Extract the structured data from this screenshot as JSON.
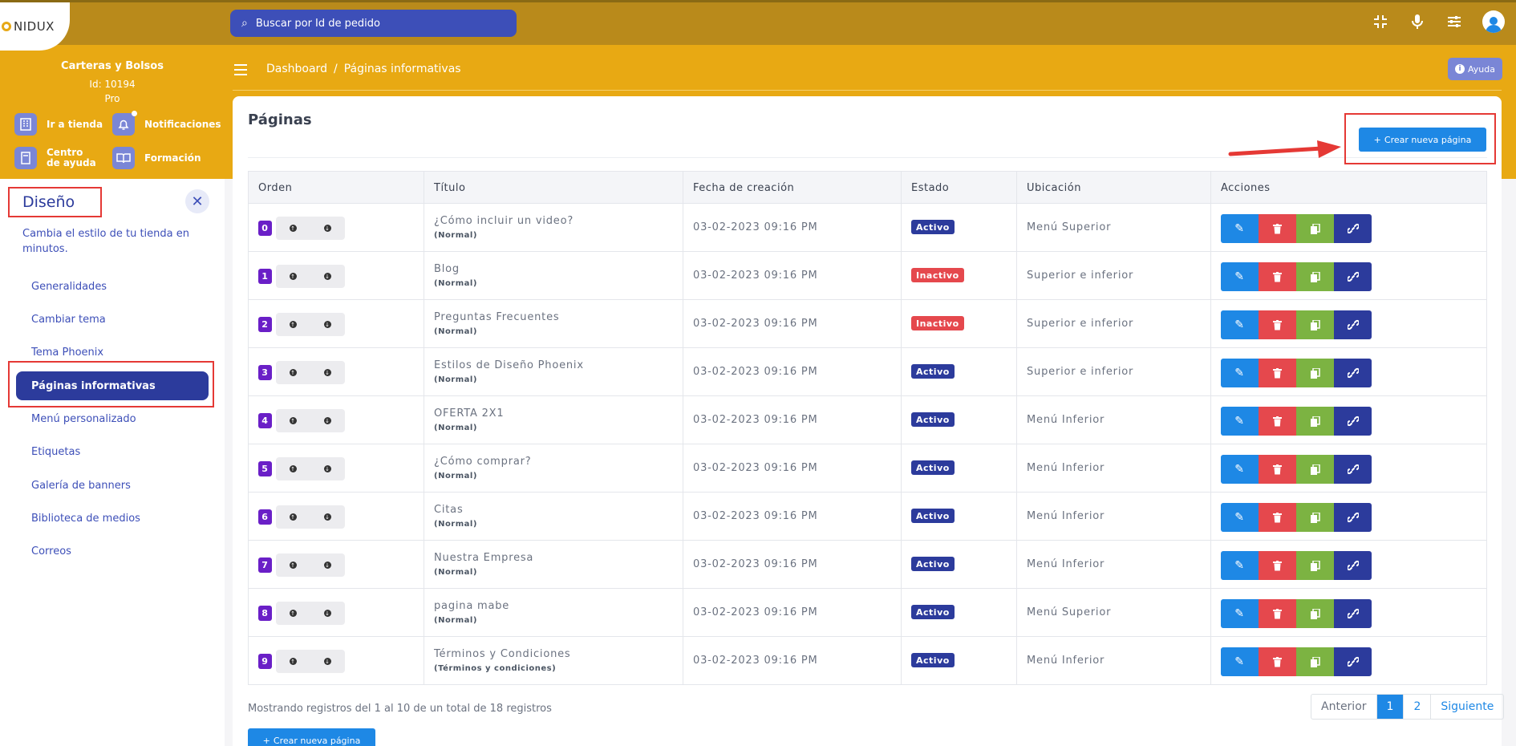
{
  "brand": {
    "name": "NIDUX"
  },
  "search": {
    "placeholder": "Buscar por Id de pedido"
  },
  "store": {
    "name": "Carteras y Bolsos",
    "id": "Id: 10194",
    "plan": "Pro"
  },
  "quick_links": [
    {
      "label": "Ir a tienda",
      "icon": "store-icon"
    },
    {
      "label": "Notificaciones",
      "icon": "bell-icon"
    },
    {
      "label": "Centro de ayuda",
      "icon": "book-icon"
    },
    {
      "label": "Formación",
      "icon": "open-book-icon"
    }
  ],
  "section": {
    "title": "Diseño",
    "description": "Cambia el estilo de tu tienda en minutos.",
    "close_icon": "close-icon"
  },
  "menu": [
    "Generalidades",
    "Cambiar tema",
    "Tema Phoenix",
    "Páginas informativas",
    "Menú personalizado",
    "Etiquetas",
    "Galería de banners",
    "Biblioteca de medios",
    "Correos"
  ],
  "breadcrumb": {
    "home": "Dashboard",
    "separator": "/",
    "current": "Páginas informativas"
  },
  "help": {
    "label": "Ayuda"
  },
  "page": {
    "title": "Páginas",
    "create_label": "Crear nueva página"
  },
  "table": {
    "headers": [
      "Orden",
      "Título",
      "Fecha de creación",
      "Estado",
      "Ubicación",
      "Acciones"
    ],
    "rows": [
      {
        "order": "0",
        "title": "¿Cómo incluir un video?",
        "type": "(Normal)",
        "date": "03-02-2023 09:16 PM",
        "status": "Activo",
        "location": "Menú Superior"
      },
      {
        "order": "1",
        "title": "Blog",
        "type": "(Normal)",
        "date": "03-02-2023 09:16 PM",
        "status": "Inactivo",
        "location": "Superior e inferior"
      },
      {
        "order": "2",
        "title": "Preguntas Frecuentes",
        "type": "(Normal)",
        "date": "03-02-2023 09:16 PM",
        "status": "Inactivo",
        "location": "Superior e inferior"
      },
      {
        "order": "3",
        "title": "Estilos de Diseño Phoenix",
        "type": "(Normal)",
        "date": "03-02-2023 09:16 PM",
        "status": "Activo",
        "location": "Superior e inferior"
      },
      {
        "order": "4",
        "title": "OFERTA 2X1",
        "type": "(Normal)",
        "date": "03-02-2023 09:16 PM",
        "status": "Activo",
        "location": "Menú Inferior"
      },
      {
        "order": "5",
        "title": "¿Cómo comprar?",
        "type": "(Normal)",
        "date": "03-02-2023 09:16 PM",
        "status": "Activo",
        "location": "Menú Inferior"
      },
      {
        "order": "6",
        "title": "Citas",
        "type": "(Normal)",
        "date": "03-02-2023 09:16 PM",
        "status": "Activo",
        "location": "Menú Inferior"
      },
      {
        "order": "7",
        "title": "Nuestra Empresa",
        "type": "(Normal)",
        "date": "03-02-2023 09:16 PM",
        "status": "Activo",
        "location": "Menú Inferior"
      },
      {
        "order": "8",
        "title": "pagina mabe",
        "type": "(Normal)",
        "date": "03-02-2023 09:16 PM",
        "status": "Activo",
        "location": "Menú Superior"
      },
      {
        "order": "9",
        "title": "Términos y Condiciones",
        "type": "(Términos y condiciones)",
        "date": "03-02-2023 09:16 PM",
        "status": "Activo",
        "location": "Menú Inferior"
      }
    ]
  },
  "footer": {
    "info": "Mostrando registros del 1 al 10 de un total de 18 registros",
    "prev": "Anterior",
    "pages": [
      "1",
      "2"
    ],
    "next": "Siguiente"
  },
  "colors": {
    "header": "#b98a1b",
    "band": "#e8a913",
    "primary": "#2c3b9c",
    "blue": "#1e88e5",
    "danger": "#e5484d",
    "success": "#7cb342"
  }
}
